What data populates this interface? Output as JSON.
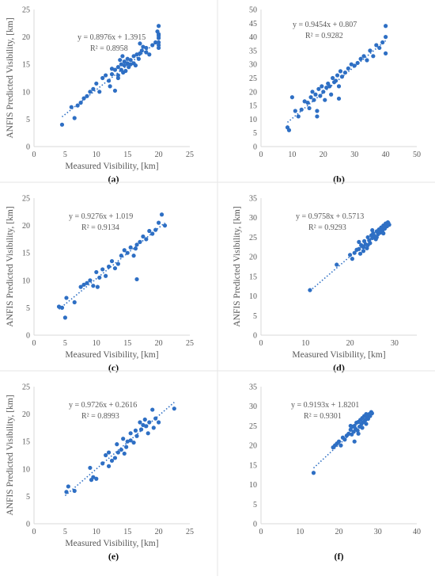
{
  "chart_data": [
    {
      "type": "scatter",
      "caption": "(a)",
      "xlabel": "Measured Visibility, [km]",
      "ylabel": "ANFIS Predicted Visibility, [km]",
      "xlim": [
        0,
        25
      ],
      "ylim": [
        0,
        25
      ],
      "xticks": [
        0,
        5,
        10,
        15,
        20,
        25
      ],
      "yticks": [
        0,
        5,
        10,
        15,
        20,
        25
      ],
      "equation": "y = 0.8976x + 1.3915",
      "r2": "R² = 0.8958",
      "trend": {
        "slope": 0.8976,
        "intercept": 1.3915,
        "x_range": [
          4.5,
          20
        ]
      },
      "x": [
        4.5,
        6.0,
        6.5,
        7.0,
        7.5,
        8.0,
        8.5,
        9.0,
        9.5,
        10.0,
        10.5,
        11.0,
        11.5,
        12.0,
        12.2,
        12.5,
        13.0,
        13.0,
        13.5,
        13.5,
        13.8,
        14.0,
        14.0,
        14.2,
        14.3,
        14.5,
        14.5,
        14.7,
        15.0,
        15.0,
        15.2,
        15.5,
        15.5,
        16.0,
        16.0,
        16.3,
        16.5,
        16.8,
        17.0,
        17.0,
        17.3,
        17.5,
        18.0,
        18.0,
        18.5,
        19.0,
        19.5,
        19.8,
        20.0,
        20.0,
        20.0,
        20.0,
        20.0,
        20.0,
        20.0,
        12.5,
        13.5
      ],
      "y": [
        4.0,
        7.2,
        5.2,
        7.5,
        8.0,
        8.8,
        9.2,
        10.0,
        10.5,
        11.5,
        10.0,
        12.5,
        13.0,
        12.0,
        11.0,
        13.2,
        14.0,
        10.2,
        14.5,
        13.0,
        15.8,
        15.0,
        14.0,
        16.5,
        13.5,
        15.5,
        14.8,
        13.8,
        16.0,
        15.2,
        14.5,
        15.8,
        15.0,
        16.5,
        15.2,
        14.8,
        16.8,
        16.0,
        17.0,
        18.8,
        17.5,
        18.2,
        18.0,
        17.2,
        16.8,
        18.5,
        19.0,
        21.0,
        22.0,
        20.5,
        19.8,
        19.0,
        18.5,
        18.0,
        20.2,
        14.2,
        12.5
      ]
    },
    {
      "type": "scatter",
      "caption": "(b)",
      "xlabel": "",
      "ylabel": "",
      "xlim": [
        0,
        50
      ],
      "ylim": [
        0,
        50
      ],
      "xticks": [
        0,
        10,
        20,
        30,
        40,
        50
      ],
      "yticks": [
        0,
        5,
        10,
        15,
        20,
        25,
        30,
        35,
        40,
        45,
        50
      ],
      "equation": "y = 0.9454x + 0.807",
      "r2": "R² = 0.9282",
      "trend": {
        "slope": 0.9454,
        "intercept": 0.807,
        "x_range": [
          8.5,
          40
        ]
      },
      "x": [
        8.5,
        9.0,
        10.0,
        11.0,
        12.0,
        13.0,
        14.0,
        15.0,
        15.5,
        16.0,
        16.5,
        17.0,
        17.5,
        18.0,
        18.5,
        19.0,
        19.5,
        20.0,
        20.5,
        21.0,
        21.5,
        22.0,
        22.5,
        23.0,
        23.5,
        24.0,
        24.5,
        25.0,
        25.5,
        26.0,
        27.0,
        28.0,
        29.0,
        30.0,
        31.0,
        32.0,
        33.0,
        34.0,
        35.0,
        36.0,
        37.0,
        38.0,
        39.0,
        40.0,
        40.0,
        40.0,
        18.0,
        25.0
      ],
      "y": [
        7.0,
        6.0,
        18.0,
        13.0,
        11.0,
        13.5,
        16.5,
        16.0,
        14.0,
        18.0,
        20.0,
        17.0,
        19.0,
        13.0,
        21.0,
        18.5,
        22.0,
        20.0,
        17.0,
        21.5,
        23.0,
        22.0,
        19.0,
        25.0,
        23.5,
        24.0,
        26.0,
        22.0,
        27.5,
        25.5,
        27.0,
        28.5,
        30.0,
        29.5,
        30.5,
        32.0,
        33.0,
        31.5,
        35.0,
        33.0,
        37.0,
        36.0,
        38.0,
        44.0,
        40.0,
        34.0,
        11.0,
        17.5
      ]
    },
    {
      "type": "scatter",
      "caption": "(c)",
      "xlabel": "Measured Visibility, [km]",
      "ylabel": "ANFIS Predicted Visibility, [km]",
      "xlim": [
        0,
        25
      ],
      "ylim": [
        0,
        25
      ],
      "xticks": [
        0,
        5,
        10,
        15,
        20,
        25
      ],
      "yticks": [
        0,
        5,
        10,
        15,
        20,
        25
      ],
      "equation": "y = 0.9276x + 1.019",
      "r2": "R² = 0.9134",
      "trend": {
        "slope": 0.9276,
        "intercept": 1.019,
        "x_range": [
          4,
          21
        ]
      },
      "x": [
        4.0,
        4.5,
        5.0,
        5.2,
        6.5,
        7.5,
        8.0,
        8.5,
        9.0,
        9.5,
        10.0,
        10.5,
        11.0,
        11.5,
        12.0,
        12.5,
        13.0,
        13.5,
        14.0,
        14.5,
        15.0,
        15.5,
        16.0,
        16.3,
        16.5,
        17.0,
        17.5,
        18.0,
        18.5,
        19.0,
        19.5,
        20.0,
        20.5,
        21.0,
        16.5,
        10.2
      ],
      "y": [
        5.2,
        5.0,
        3.2,
        6.8,
        6.0,
        8.8,
        9.2,
        9.5,
        10.0,
        9.0,
        11.5,
        10.5,
        12.0,
        10.8,
        12.5,
        13.5,
        12.2,
        13.0,
        14.5,
        15.5,
        15.0,
        16.0,
        14.5,
        15.8,
        16.5,
        17.0,
        18.0,
        17.5,
        19.0,
        18.5,
        19.2,
        20.5,
        22.0,
        20.0,
        10.2,
        8.8
      ]
    },
    {
      "type": "scatter",
      "caption": "(d)",
      "xlabel": "Measured Visibility, [km]",
      "ylabel": "ANFIS Predicted Visibility, [km]",
      "xlim": [
        0,
        35
      ],
      "ylim": [
        0,
        35
      ],
      "xticks": [
        0,
        10,
        20,
        30
      ],
      "yticks": [
        0,
        5,
        10,
        15,
        20,
        25,
        30,
        35
      ],
      "equation": "y = 0.9758x + 0.5713",
      "r2": "R² = 0.9293",
      "trend": {
        "slope": 0.9758,
        "intercept": 0.5713,
        "x_range": [
          11,
          29
        ]
      },
      "x": [
        11.0,
        17.0,
        20.0,
        20.5,
        21.0,
        21.5,
        22.0,
        22.3,
        22.5,
        23.0,
        23.2,
        23.5,
        23.8,
        24.0,
        24.3,
        24.5,
        24.8,
        25.0,
        25.2,
        25.5,
        25.8,
        26.0,
        26.3,
        26.5,
        26.8,
        27.0,
        27.3,
        27.5,
        27.8,
        28.0,
        28.3,
        28.5,
        28.8,
        22.0,
        24.0,
        26.0,
        27.5,
        25.0,
        23.0
      ],
      "y": [
        11.5,
        18.0,
        20.5,
        19.5,
        21.0,
        21.8,
        22.0,
        20.8,
        23.0,
        22.5,
        24.0,
        23.2,
        22.2,
        25.0,
        24.2,
        23.5,
        25.5,
        24.8,
        26.0,
        25.2,
        24.5,
        26.5,
        25.8,
        27.0,
        26.2,
        27.5,
        26.8,
        28.0,
        27.2,
        28.5,
        27.8,
        28.8,
        28.2,
        23.8,
        23.0,
        25.0,
        26.0,
        26.8,
        21.5
      ]
    },
    {
      "type": "scatter",
      "caption": "(e)",
      "xlabel": "Measured Visibility, [km]",
      "ylabel": "ANFIS Predicted Visibility, [km]",
      "xlim": [
        0,
        25
      ],
      "ylim": [
        0,
        25
      ],
      "xticks": [
        0,
        5,
        10,
        15,
        20,
        25
      ],
      "yticks": [
        0,
        5,
        10,
        15,
        20,
        25
      ],
      "equation": "y = 0.9726x + 0.2616",
      "r2": "R² = 0.8993",
      "trend": {
        "slope": 0.9726,
        "intercept": 0.2616,
        "x_range": [
          5,
          22.5
        ]
      },
      "x": [
        5.2,
        5.5,
        6.5,
        9.0,
        9.2,
        9.5,
        10.0,
        11.0,
        11.5,
        12.0,
        12.5,
        13.0,
        13.3,
        13.5,
        14.0,
        14.3,
        14.5,
        14.8,
        15.0,
        15.5,
        16.0,
        16.3,
        16.5,
        17.0,
        17.2,
        17.5,
        17.8,
        18.0,
        18.3,
        18.5,
        19.0,
        19.2,
        19.5,
        20.0,
        22.5,
        12.0,
        15.5
      ],
      "y": [
        5.8,
        6.8,
        6.0,
        10.2,
        8.0,
        8.5,
        8.2,
        11.0,
        12.5,
        13.0,
        11.5,
        12.0,
        14.5,
        13.0,
        13.5,
        15.5,
        12.8,
        14.0,
        15.0,
        16.5,
        14.8,
        17.0,
        16.0,
        18.5,
        17.2,
        18.0,
        19.0,
        17.8,
        16.5,
        18.5,
        20.8,
        17.5,
        19.2,
        18.5,
        21.0,
        10.5,
        15.2
      ]
    },
    {
      "type": "scatter",
      "caption": "(f)",
      "xlabel": "",
      "ylabel": "",
      "xlim": [
        0,
        40
      ],
      "ylim": [
        0,
        35
      ],
      "xticks": [
        0,
        10,
        20,
        30,
        40
      ],
      "yticks": [
        0,
        5,
        10,
        15,
        20,
        25,
        30,
        35
      ],
      "equation": "y = 0.9193x + 1.8201",
      "r2": "R² = 0.9301",
      "trend": {
        "slope": 0.9193,
        "intercept": 1.8201,
        "x_range": [
          13.5,
          28.5
        ]
      },
      "x": [
        13.5,
        18.5,
        19.0,
        19.5,
        20.0,
        20.5,
        21.0,
        21.5,
        22.0,
        22.5,
        23.0,
        23.3,
        23.5,
        23.8,
        24.0,
        24.3,
        24.5,
        24.8,
        25.0,
        25.3,
        25.5,
        25.8,
        26.0,
        26.3,
        26.5,
        26.8,
        27.0,
        27.3,
        27.5,
        27.8,
        28.0,
        28.3,
        28.5,
        24.0,
        25.0,
        26.0,
        27.0,
        23.0
      ],
      "y": [
        13.0,
        19.5,
        20.0,
        20.5,
        21.0,
        20.0,
        22.0,
        21.5,
        22.5,
        23.0,
        24.0,
        22.8,
        24.8,
        23.5,
        25.0,
        24.2,
        25.8,
        23.8,
        26.0,
        24.8,
        26.5,
        25.5,
        27.0,
        26.0,
        27.5,
        26.5,
        28.0,
        27.2,
        26.8,
        28.0,
        27.5,
        28.5,
        28.2,
        21.0,
        23.0,
        24.5,
        25.5,
        25.0
      ]
    }
  ]
}
